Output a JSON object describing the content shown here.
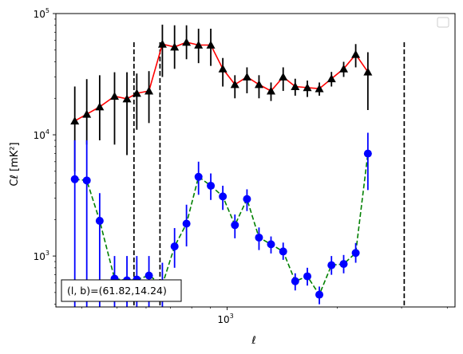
{
  "chart_data": {
    "type": "scatter",
    "title": "",
    "xlabel": "ℓ",
    "ylabel": "Cℓ [mK²]",
    "xscale": "log",
    "yscale": "log",
    "xlim": [
      340,
      4200
    ],
    "ylim": [
      380,
      100000
    ],
    "x_ticks": [
      {
        "value": 1000,
        "base": "10",
        "exp": "3"
      }
    ],
    "y_ticks": [
      {
        "value": 1000,
        "base": "10",
        "exp": "3"
      },
      {
        "value": 10000,
        "base": "10",
        "exp": "4"
      },
      {
        "value": 100000,
        "base": "10",
        "exp": "5"
      }
    ],
    "vlines": [
      556,
      655,
      3050
    ],
    "legend": "empty box, top-right",
    "annotation": "(l, b)=(61.82,14.24)",
    "series": [
      {
        "style": "solid-red-line-black-triangles",
        "line_color": "#ff0000",
        "marker_color": "#000000",
        "x": [
          383,
          413,
          448,
          492,
          532,
          566,
          611,
          665,
          718,
          774,
          835,
          902,
          973,
          1050,
          1133,
          1222,
          1318,
          1423,
          1535,
          1657,
          1787,
          1929,
          2083,
          2247,
          2426,
          2616,
          2823,
          3047,
          3287,
          3547,
          3829
        ],
        "y": [
          13000,
          14800,
          17000,
          20800,
          19800,
          22000,
          23000,
          56000,
          53000,
          58000,
          55000,
          55000,
          35000,
          26000,
          30000,
          26000,
          23000,
          30000,
          25000,
          24500,
          24000,
          29000,
          35000,
          46000,
          33000,
          null,
          null,
          null,
          null,
          null,
          null
        ],
        "yerr_low": [
          8000,
          6500,
          8000,
          12500,
          13000,
          11000,
          10500,
          26000,
          18000,
          16000,
          16000,
          18000,
          10000,
          6000,
          8000,
          6000,
          4000,
          7000,
          4000,
          4000,
          3000,
          4000,
          5000,
          10000,
          17000,
          null,
          null,
          null,
          null,
          null,
          null
        ],
        "yerr_high": [
          12000,
          14000,
          14000,
          12000,
          13000,
          10000,
          10500,
          25000,
          27000,
          22000,
          20000,
          20000,
          8000,
          5000,
          6000,
          5000,
          4000,
          6000,
          4000,
          3500,
          3000,
          4000,
          5000,
          10000,
          15000,
          null,
          null,
          null,
          null,
          null,
          null
        ]
      },
      {
        "style": "dashed-green-line-blue-circles",
        "line_color": "#008000",
        "marker_color": "#0000ff",
        "x": [
          383,
          413,
          448,
          492,
          532,
          566,
          611,
          665,
          718,
          774,
          835,
          902,
          973,
          1050,
          1133,
          1222,
          1318,
          1423,
          1535,
          1657,
          1787,
          1929,
          2083,
          2247,
          2426,
          2616,
          2823,
          3047,
          3287,
          3547,
          3829
        ],
        "y": [
          4300,
          4200,
          1950,
          650,
          630,
          640,
          690,
          580,
          1200,
          1850,
          4500,
          3800,
          3100,
          1800,
          2950,
          1420,
          1250,
          1090,
          620,
          680,
          480,
          840,
          860,
          1060,
          7000,
          null,
          null,
          null,
          null,
          null,
          null
        ],
        "yerr_low": [
          3920,
          3820,
          1570,
          270,
          250,
          260,
          310,
          200,
          400,
          650,
          1300,
          900,
          700,
          400,
          600,
          300,
          200,
          160,
          100,
          110,
          80,
          140,
          140,
          180,
          3500,
          null,
          null,
          null,
          null,
          null,
          null
        ],
        "yerr_high": [
          4700,
          4800,
          1350,
          350,
          370,
          360,
          310,
          300,
          500,
          800,
          1500,
          1000,
          700,
          400,
          600,
          300,
          200,
          200,
          100,
          120,
          80,
          160,
          160,
          220,
          3400,
          null,
          null,
          null,
          null,
          null,
          null
        ]
      }
    ]
  }
}
